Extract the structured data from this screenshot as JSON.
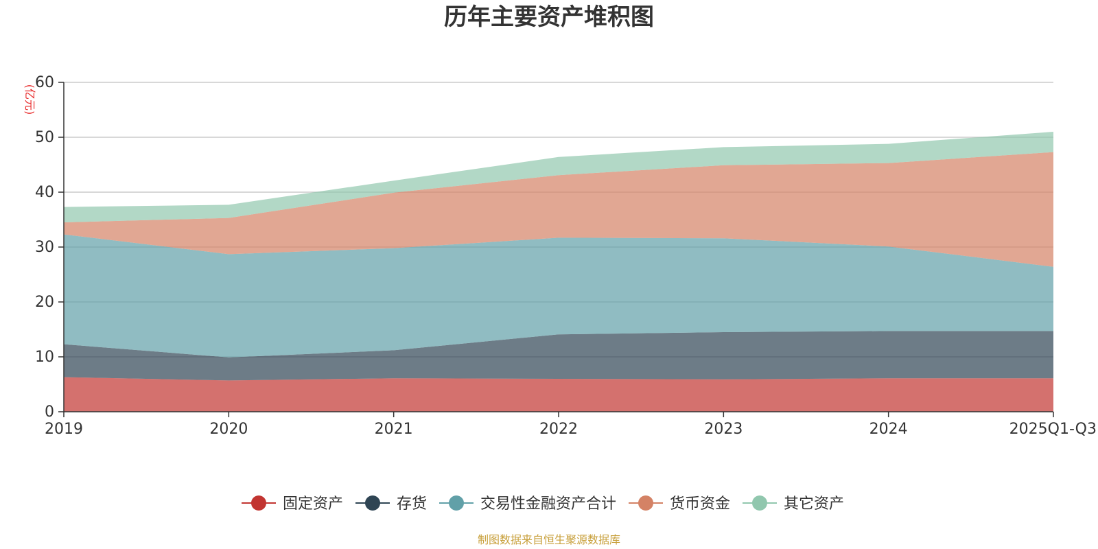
{
  "chart_data": {
    "type": "area",
    "stacked": true,
    "title": "历年主要资产堆积图",
    "ylabel": "(亿元)",
    "xlabel": "",
    "ylim": [
      0,
      60
    ],
    "yticks": [
      0,
      10,
      20,
      30,
      40,
      50,
      60
    ],
    "grid": true,
    "legend_position": "bottom",
    "categories": [
      "2019",
      "2020",
      "2021",
      "2022",
      "2023",
      "2024",
      "2025Q1-Q3"
    ],
    "series": [
      {
        "name": "固定资产",
        "color": "#c23531",
        "values": [
          6.3,
          5.7,
          6.1,
          6.0,
          5.9,
          6.1,
          6.1
        ]
      },
      {
        "name": "存货",
        "color": "#2f4554",
        "values": [
          6.0,
          4.2,
          5.1,
          8.1,
          8.6,
          8.6,
          8.6
        ]
      },
      {
        "name": "交易性金融资产合计",
        "color": "#61a0a8",
        "values": [
          20.0,
          18.8,
          18.6,
          17.6,
          17.1,
          15.4,
          11.7
        ]
      },
      {
        "name": "货币资金",
        "color": "#d48265",
        "values": [
          2.2,
          6.6,
          10.1,
          11.4,
          13.3,
          15.2,
          20.9
        ]
      },
      {
        "name": "其它资产",
        "color": "#91c7ae",
        "values": [
          2.8,
          2.4,
          2.2,
          3.3,
          3.3,
          3.5,
          3.7
        ]
      }
    ]
  },
  "footer": {
    "source": "制图数据来自恒生聚源数据库"
  }
}
